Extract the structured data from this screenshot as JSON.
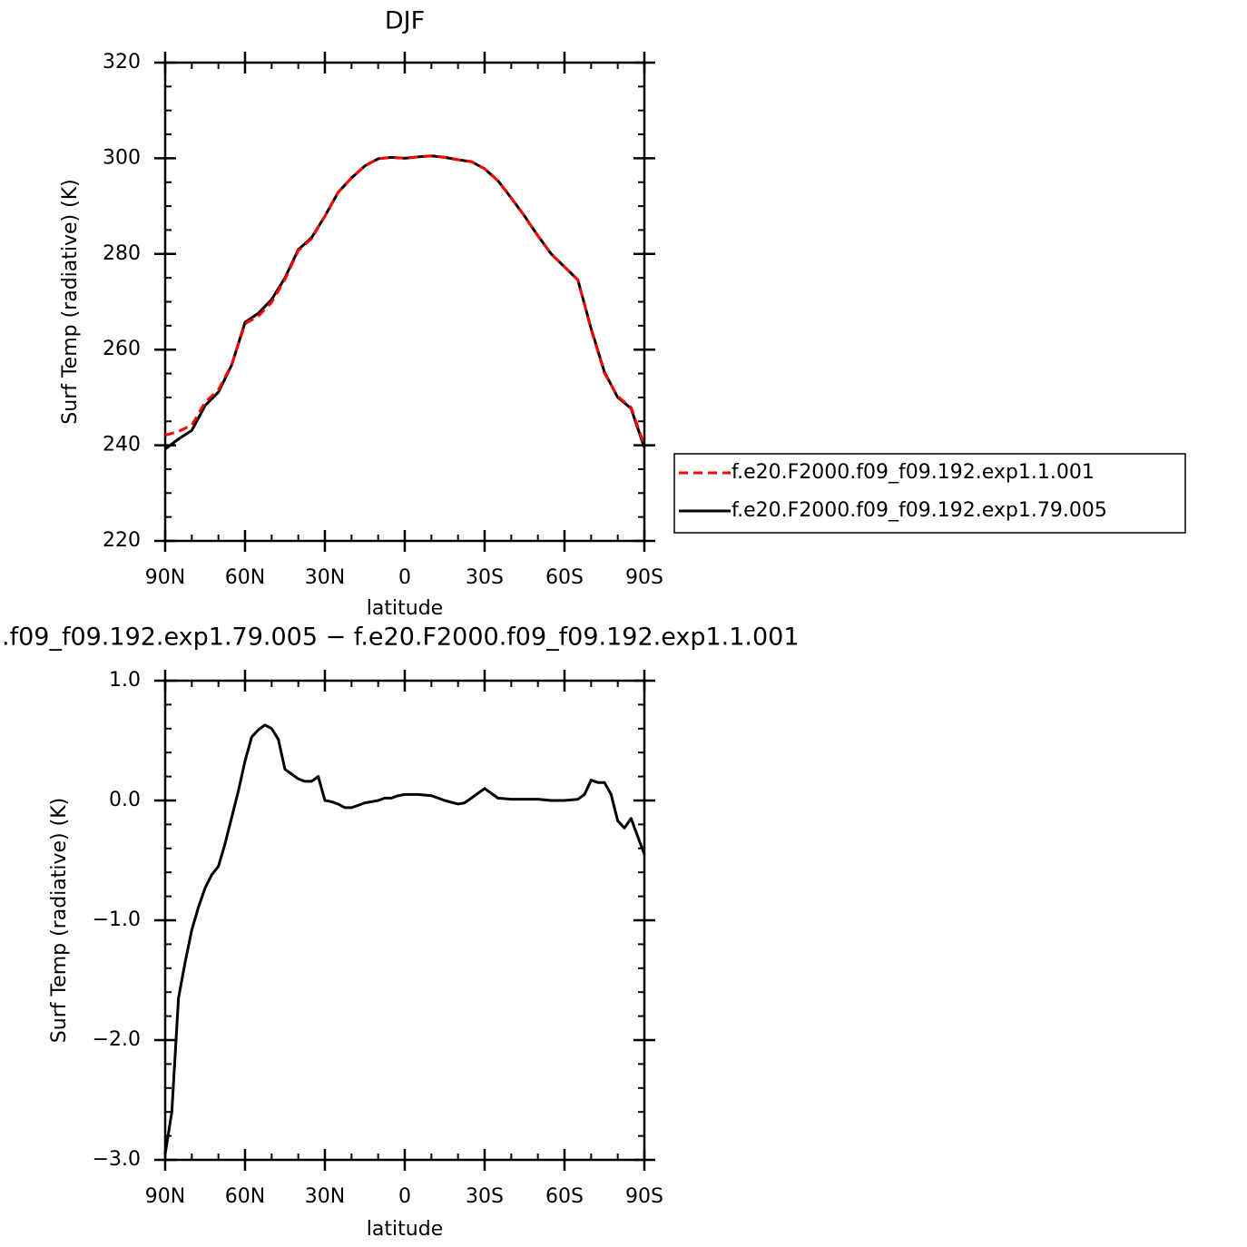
{
  "chart_data": [
    {
      "type": "line",
      "title": "DJF",
      "x_label": "latitude",
      "y_label": "Surf Temp (radiative) (K)",
      "x": [
        90,
        85,
        80,
        75,
        70,
        65,
        60,
        55,
        50,
        45,
        40,
        35,
        30,
        25,
        20,
        15,
        10,
        5,
        0,
        -5,
        -10,
        -15,
        -20,
        -25,
        -30,
        -35,
        -40,
        -45,
        -50,
        -55,
        -60,
        -65,
        -70,
        -75,
        -80,
        -85,
        -90
      ],
      "xlim": [
        90,
        -90
      ],
      "xticks": [
        {
          "value": 90,
          "label": "90N"
        },
        {
          "value": 60,
          "label": "60N"
        },
        {
          "value": 30,
          "label": "30N"
        },
        0,
        {
          "value": -30,
          "label": "30S"
        },
        {
          "value": -60,
          "label": "60S"
        },
        {
          "value": -90,
          "label": "90S"
        }
      ],
      "xminorticks": [
        80,
        70,
        50,
        40,
        20,
        10,
        -10,
        -20,
        -40,
        -50,
        -70,
        -80
      ],
      "ylim": [
        220,
        320
      ],
      "yticks": [
        220,
        240,
        260,
        280,
        300,
        320
      ],
      "yminorticks": [
        225,
        230,
        235,
        245,
        250,
        255,
        265,
        270,
        275,
        285,
        290,
        295,
        305,
        310,
        315
      ],
      "legend": "outside-right",
      "series": [
        {
          "name": "f.e20.F2000.f09_f09.192.exp1.1.001",
          "color": "#ff0000",
          "dash": "dashed",
          "values": [
            242.1,
            242.9,
            244.2,
            249.0,
            251.6,
            256.9,
            265.4,
            267.0,
            269.9,
            274.7,
            280.7,
            283.2,
            287.9,
            292.9,
            295.9,
            298.4,
            299.9,
            300.2,
            300,
            300.3,
            300.5,
            300.2,
            299.7,
            299.3,
            297.8,
            295.3,
            291.7,
            287.9,
            283.8,
            280,
            277.3,
            274.6,
            264.2,
            255.1,
            250.2,
            247.9,
            240
          ]
        },
        {
          "name": "f.e20.F2000.f09_f09.192.exp1.79.005",
          "color": "#000000",
          "dash": "solid",
          "values": [
            239.2,
            241.3,
            243.1,
            248.3,
            251.1,
            256.8,
            265.7,
            267.6,
            270.5,
            275,
            280.9,
            283.4,
            287.9,
            292.9,
            295.9,
            298.4,
            299.9,
            300.2,
            300,
            300.3,
            300.5,
            300.2,
            299.7,
            299.3,
            297.8,
            295.3,
            291.7,
            287.9,
            283.8,
            280,
            277.3,
            274.6,
            264.4,
            255.3,
            250,
            247.7,
            239.5
          ]
        }
      ]
    },
    {
      "type": "line",
      "title": ".f09_f09.192.exp1.79.005 − f.e20.F2000.f09_f09.192.exp1.1.001",
      "x_label": "latitude",
      "y_label": "Surf Temp (radiative) (K)",
      "x": [
        90,
        87.5,
        85,
        82.5,
        80,
        77.5,
        75,
        72.5,
        70,
        67.5,
        65,
        62.5,
        60,
        57.5,
        55,
        52.5,
        50,
        47.5,
        45,
        42.5,
        40,
        37.5,
        35,
        32.5,
        30,
        27.5,
        25,
        22.5,
        20,
        17.5,
        15,
        12.5,
        10,
        7.5,
        5,
        2.5,
        0,
        -5,
        -10,
        -15,
        -20,
        -22.5,
        -25,
        -30,
        -35,
        -40,
        -45,
        -50,
        -55,
        -60,
        -65,
        -67.5,
        -70,
        -72.5,
        -75,
        -77.5,
        -80,
        -82.5,
        -85,
        -87.5,
        -90
      ],
      "xlim": [
        90,
        -90
      ],
      "xticks": [
        {
          "value": 90,
          "label": "90N"
        },
        {
          "value": 60,
          "label": "60N"
        },
        {
          "value": 30,
          "label": "30N"
        },
        0,
        {
          "value": -30,
          "label": "30S"
        },
        {
          "value": -60,
          "label": "60S"
        },
        {
          "value": -90,
          "label": "90S"
        }
      ],
      "xminorticks": [
        80,
        70,
        50,
        40,
        20,
        10,
        -10,
        -20,
        -40,
        -50,
        -70,
        -80
      ],
      "ylim": [
        -3,
        1
      ],
      "yticks": [
        {
          "value": -3,
          "label": "−3.0"
        },
        {
          "value": -2,
          "label": "−2.0"
        },
        {
          "value": -1,
          "label": "−1.0"
        },
        {
          "value": 0,
          "label": "0.0"
        },
        {
          "value": 1,
          "label": "1.0"
        }
      ],
      "yminorticks": [
        -2.8,
        -2.6,
        -2.4,
        -2.2,
        -1.8,
        -1.6,
        -1.4,
        -1.2,
        -0.8,
        -0.6,
        -0.4,
        -0.2,
        0.2,
        0.4,
        0.6,
        0.8
      ],
      "series": [
        {
          "color": "#000000",
          "dash": "solid",
          "values": [
            -2.95,
            -2.6,
            -1.65,
            -1.35,
            -1.08,
            -0.89,
            -0.73,
            -0.62,
            -0.55,
            -0.36,
            -0.14,
            0.08,
            0.33,
            0.53,
            0.59,
            0.63,
            0.6,
            0.51,
            0.26,
            0.22,
            0.18,
            0.16,
            0.16,
            0.2,
            0.0,
            -0.01,
            -0.03,
            -0.06,
            -0.06,
            -0.04,
            -0.02,
            -0.01,
            0.0,
            0.02,
            0.02,
            0.04,
            0.05,
            0.05,
            0.04,
            0.0,
            -0.03,
            -0.02,
            0.02,
            0.1,
            0.02,
            0.01,
            0.01,
            0.01,
            0.0,
            0.0,
            0.01,
            0.05,
            0.17,
            0.15,
            0.15,
            0.05,
            -0.17,
            -0.23,
            -0.15,
            -0.3,
            -0.45
          ]
        }
      ]
    }
  ]
}
